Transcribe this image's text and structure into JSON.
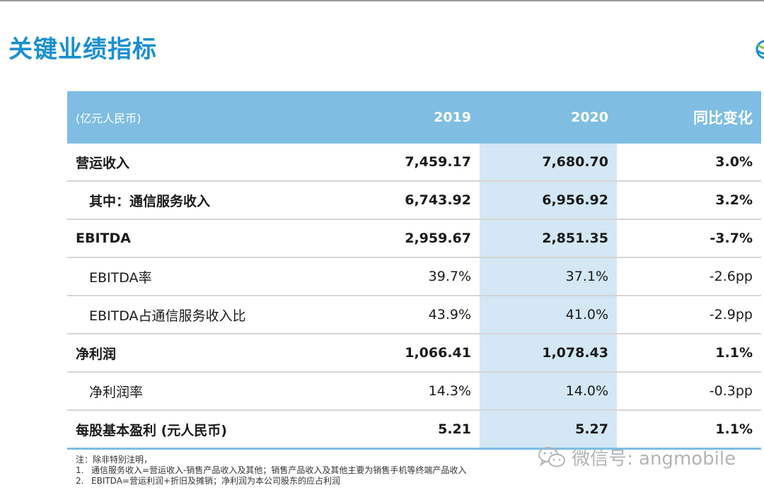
{
  "title": "关键业绩指标",
  "table": {
    "header": {
      "unit": "(亿元人民币)",
      "col_2019": "2019",
      "col_2020": "2020",
      "col_yoy": "同比变化"
    },
    "rows": [
      {
        "label": "营运收入",
        "v2019": "7,459.17",
        "v2020": "7,680.70",
        "yoy": "3.0%"
      },
      {
        "label": "其中：通信服务收入",
        "v2019": "6,743.92",
        "v2020": "6,956.92",
        "yoy": "3.2%"
      },
      {
        "label": "EBITDA",
        "v2019": "2,959.67",
        "v2020": "2,851.35",
        "yoy": "-3.7%"
      },
      {
        "label": "EBITDA率",
        "v2019": "39.7%",
        "v2020": "37.1%",
        "yoy": "-2.6pp"
      },
      {
        "label": "EBITDA占通信服务收入比",
        "v2019": "43.9%",
        "v2020": "41.0%",
        "yoy": "-2.9pp"
      },
      {
        "label": "净利润",
        "v2019": "1,066.41",
        "v2020": "1,078.43",
        "yoy": "1.1%"
      },
      {
        "label": "净利润率",
        "v2019": "14.3%",
        "v2020": "14.0%",
        "yoy": "-0.3pp"
      },
      {
        "label": "每股基本盈利 (元人民币)",
        "v2019": "5.21",
        "v2020": "5.27",
        "yoy": "1.1%"
      }
    ]
  },
  "notes": {
    "intro": "注：除非特别注明，",
    "items": [
      {
        "idx": "1.",
        "text": "通信服务收入=营运收入-销售产品收入及其他；销售产品收入及其他主要为销售手机等终端产品收入"
      },
      {
        "idx": "2.",
        "text": "EBITDA=营运利润+折旧及摊销；净利润为本公司股东的应占利润"
      }
    ]
  },
  "watermark": {
    "text": "微信号: angmobile",
    "icon": "wechat-icon"
  },
  "colors": {
    "title": "#1a8fd0",
    "header_bg": "#7fbde3",
    "highlight_col": "#d3e7f4"
  }
}
